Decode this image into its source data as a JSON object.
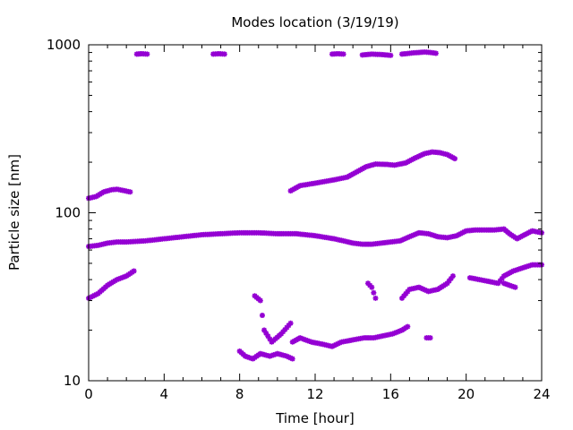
{
  "chart_data": {
    "type": "scatter",
    "title": "Modes location (3/19/19)",
    "xlabel": "Time [hour]",
    "ylabel": "Particle size [nm]",
    "xlim": [
      0,
      24
    ],
    "ylim": [
      10,
      1000
    ],
    "yscale": "log",
    "grid": false,
    "legend": "none",
    "marker_color": "#9400d3",
    "xticks": [
      0,
      4,
      8,
      12,
      16,
      20,
      24
    ],
    "xtick_labels": [
      "0",
      "4",
      "8",
      "12",
      "16",
      "20",
      "24"
    ],
    "xminor_step": 1,
    "yticks": [
      10,
      100,
      1000
    ],
    "ytick_labels": [
      "10",
      "100",
      "1000"
    ],
    "segments": [
      {
        "x": [
          0,
          0.4,
          0.8,
          1.2,
          1.5,
          1.8,
          2.2
        ],
        "y": [
          122,
          125,
          133,
          137,
          138,
          136,
          133
        ]
      },
      {
        "x": [
          2.55,
          2.8,
          3.1
        ],
        "y": [
          880,
          885,
          880
        ]
      },
      {
        "x": [
          6.6,
          6.9,
          7.2
        ],
        "y": [
          880,
          885,
          880
        ]
      },
      {
        "x": [
          10.7,
          11.2,
          12,
          13,
          13.7,
          14.2,
          14.7,
          15.2,
          15.8,
          16.2,
          16.8,
          17.3,
          17.8,
          18.2,
          18.6,
          19,
          19.4
        ],
        "y": [
          135,
          145,
          150,
          157,
          163,
          175,
          188,
          195,
          194,
          192,
          198,
          212,
          225,
          230,
          228,
          222,
          210
        ]
      },
      {
        "x": [
          12.9,
          13.2,
          13.5
        ],
        "y": [
          880,
          885,
          880
        ]
      },
      {
        "x": [
          14.5,
          15,
          15.5,
          16
        ],
        "y": [
          870,
          880,
          875,
          865
        ]
      },
      {
        "x": [
          16.6,
          17.2,
          17.8,
          18.1,
          18.4
        ],
        "y": [
          880,
          895,
          905,
          900,
          890
        ]
      },
      {
        "x": [
          0,
          0.5,
          1,
          1.5,
          2,
          3,
          4,
          5,
          6,
          7,
          8,
          9,
          10,
          11,
          12,
          13,
          13.5,
          14,
          14.5,
          15,
          15.5,
          16,
          16.5,
          17,
          17.5,
          18,
          18.5,
          19,
          19.5,
          20,
          20.5,
          21,
          21.5,
          22,
          22.3,
          22.7,
          23,
          23.5,
          24
        ],
        "y": [
          63,
          64,
          66,
          67,
          67,
          68,
          70,
          72,
          74,
          75,
          76,
          76,
          75,
          75,
          73,
          70,
          68,
          66,
          65,
          65,
          66,
          67,
          68,
          72,
          76,
          75,
          72,
          71,
          73,
          78,
          79,
          79,
          79,
          80,
          75,
          70,
          73,
          78,
          76
        ]
      },
      {
        "x": [
          0,
          0.5,
          1,
          1.5,
          2,
          2.4
        ],
        "y": [
          31,
          33,
          37,
          40,
          42,
          45
        ]
      },
      {
        "x": [
          8.8,
          9.1,
          9.3,
          9.7,
          10.2,
          10.7
        ],
        "y": [
          32,
          30,
          20,
          17,
          19,
          22
        ]
      },
      {
        "x": [
          8,
          8.3,
          8.7,
          9.1,
          9.6,
          10,
          10.5,
          10.8
        ],
        "y": [
          15,
          14,
          13.5,
          14.5,
          14,
          14.5,
          14,
          13.5
        ]
      },
      {
        "x": [
          10.8,
          11.2,
          11.8,
          12.4,
          12.9,
          13.4,
          14,
          14.6,
          15.1,
          15.6,
          16.1,
          16.6,
          16.9
        ],
        "y": [
          17,
          18,
          17,
          16.5,
          16,
          17,
          17.5,
          18,
          18,
          18.5,
          19,
          20,
          21
        ]
      },
      {
        "x": [
          14.8,
          15,
          15.2
        ],
        "y": [
          38,
          36,
          31
        ]
      },
      {
        "x": [
          16.6,
          17,
          17.5,
          18,
          18.5,
          19,
          19.3
        ],
        "y": [
          31,
          35,
          36,
          34,
          35,
          38,
          42
        ]
      },
      {
        "x": [
          17.9,
          18.1
        ],
        "y": [
          18,
          18
        ]
      },
      {
        "x": [
          20.2,
          20.7,
          21.2,
          21.7,
          22,
          22.5,
          23,
          23.5,
          24
        ],
        "y": [
          41,
          40,
          39,
          38,
          42,
          45,
          47,
          49,
          49
        ]
      },
      {
        "x": [
          22,
          22.3,
          22.6
        ],
        "y": [
          38,
          37,
          36
        ]
      }
    ]
  }
}
